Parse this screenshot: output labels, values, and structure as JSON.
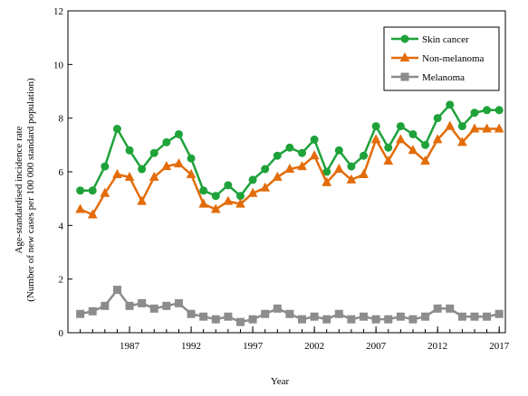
{
  "chart_data": {
    "type": "line",
    "xlabel": "Year",
    "ylabel_lines": [
      "Age-standardised incidence rate",
      "(Number of new cases per 100 000 standard population)"
    ],
    "xlim": [
      1983,
      2017
    ],
    "ylim": [
      0,
      12
    ],
    "yticks": [
      0,
      2,
      4,
      6,
      8,
      10,
      12
    ],
    "xticks": [
      1987,
      1992,
      1997,
      2002,
      2007,
      2012,
      2017
    ],
    "grid": false,
    "legend_position": "top-right",
    "x": [
      1983,
      1984,
      1985,
      1986,
      1987,
      1988,
      1989,
      1990,
      1991,
      1992,
      1993,
      1994,
      1995,
      1996,
      1997,
      1998,
      1999,
      2000,
      2001,
      2002,
      2003,
      2004,
      2005,
      2006,
      2007,
      2008,
      2009,
      2010,
      2011,
      2012,
      2013,
      2014,
      2015,
      2016,
      2017
    ],
    "series": [
      {
        "name": "Skin cancer",
        "color": "#1fa23a",
        "marker": "circle",
        "values": [
          5.3,
          5.3,
          6.2,
          7.6,
          6.8,
          6.1,
          6.7,
          7.1,
          7.4,
          6.5,
          5.3,
          5.1,
          5.5,
          5.1,
          5.7,
          6.1,
          6.6,
          6.9,
          6.7,
          7.2,
          6.0,
          6.8,
          6.2,
          6.6,
          7.7,
          6.9,
          7.7,
          7.4,
          7.0,
          8.0,
          8.5,
          7.7,
          8.2,
          8.3,
          8.3
        ]
      },
      {
        "name": "Non-melanoma",
        "color": "#e36c0a",
        "marker": "triangle",
        "values": [
          4.6,
          4.4,
          5.2,
          5.9,
          5.8,
          4.9,
          5.8,
          6.2,
          6.3,
          5.9,
          4.8,
          4.6,
          4.9,
          4.8,
          5.2,
          5.4,
          5.8,
          6.1,
          6.2,
          6.6,
          5.6,
          6.1,
          5.7,
          5.9,
          7.2,
          6.4,
          7.2,
          6.8,
          6.4,
          7.2,
          7.7,
          7.1,
          7.6,
          7.6,
          7.6
        ]
      },
      {
        "name": "Melanoma",
        "color": "#8c8c8c",
        "marker": "square",
        "values": [
          0.7,
          0.8,
          1.0,
          1.6,
          1.0,
          1.1,
          0.9,
          1.0,
          1.1,
          0.7,
          0.6,
          0.5,
          0.6,
          0.4,
          0.5,
          0.7,
          0.9,
          0.7,
          0.5,
          0.6,
          0.5,
          0.7,
          0.5,
          0.6,
          0.5,
          0.5,
          0.6,
          0.5,
          0.6,
          0.9,
          0.9,
          0.6,
          0.6,
          0.6,
          0.7
        ]
      }
    ]
  }
}
